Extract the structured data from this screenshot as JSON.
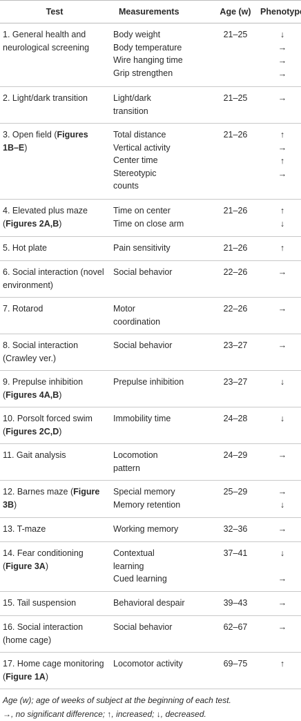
{
  "header": {
    "columns": [
      "Test",
      "Measurements",
      "Age (w)",
      "Phenotype"
    ]
  },
  "table": {
    "rows": [
      {
        "test": [
          {
            "text": "1. General health and neurological screening"
          }
        ],
        "measurements": [
          "Body weight",
          "Body temperature",
          "Wire hanging time",
          "Grip strengthen"
        ],
        "age": "21–25",
        "phenotype": [
          "↓",
          "→",
          "→",
          "→"
        ]
      },
      {
        "test": [
          {
            "text": "2. Light/dark transition"
          }
        ],
        "measurements": [
          [
            "Light/dark",
            "transition"
          ]
        ],
        "age": "21–25",
        "phenotype": [
          "→"
        ]
      },
      {
        "test": [
          {
            "text": "3. Open field ("
          },
          {
            "text": "Figures 1B–E",
            "bold": true
          },
          {
            "text": ")"
          }
        ],
        "measurements": [
          "Total distance",
          "Vertical activity",
          "Center time",
          [
            "Stereotypic",
            "counts"
          ]
        ],
        "age": "21–26",
        "phenotype": [
          "↑",
          "→",
          "↑",
          "→"
        ]
      },
      {
        "test": [
          {
            "text": "4. Elevated plus maze ("
          },
          {
            "text": "Figures 2A,B",
            "bold": true
          },
          {
            "text": ")"
          }
        ],
        "measurements": [
          "Time on center",
          "Time on close arm"
        ],
        "age": "21–26",
        "phenotype": [
          "↑",
          "↓"
        ]
      },
      {
        "test": [
          {
            "text": "5. Hot plate"
          }
        ],
        "measurements": [
          "Pain sensitivity"
        ],
        "age": "21–26",
        "phenotype": [
          "↑"
        ]
      },
      {
        "test": [
          {
            "text": "6. Social interaction (novel environment)"
          }
        ],
        "measurements": [
          "Social behavior"
        ],
        "age": "22–26",
        "phenotype": [
          "→"
        ]
      },
      {
        "test": [
          {
            "text": "7. Rotarod"
          }
        ],
        "measurements": [
          [
            "Motor",
            "coordination"
          ]
        ],
        "age": "22–26",
        "phenotype": [
          "→"
        ]
      },
      {
        "test": [
          {
            "text": "8. Social interaction (Crawley ver.)"
          }
        ],
        "measurements": [
          "Social behavior"
        ],
        "age": "23–27",
        "phenotype": [
          "→"
        ]
      },
      {
        "test": [
          {
            "text": "9. Prepulse inhibition ("
          },
          {
            "text": "Figures 4A,B",
            "bold": true
          },
          {
            "text": ")"
          }
        ],
        "measurements": [
          "Prepulse inhibition"
        ],
        "age": "23–27",
        "phenotype": [
          "↓"
        ]
      },
      {
        "test": [
          {
            "text": "10. Porsolt forced swim ("
          },
          {
            "text": "Figures 2C,D",
            "bold": true
          },
          {
            "text": ")"
          }
        ],
        "measurements": [
          "Immobility time"
        ],
        "age": "24–28",
        "phenotype": [
          "↓"
        ]
      },
      {
        "test": [
          {
            "text": "11. Gait analysis"
          }
        ],
        "measurements": [
          [
            "Locomotion",
            "pattern"
          ]
        ],
        "age": "24–29",
        "phenotype": [
          "→"
        ]
      },
      {
        "test": [
          {
            "text": "12. Barnes maze ("
          },
          {
            "text": "Figure 3B",
            "bold": true
          },
          {
            "text": ")"
          }
        ],
        "measurements": [
          "Special memory",
          "Memory retention"
        ],
        "age": "25–29",
        "phenotype": [
          "→",
          "↓"
        ]
      },
      {
        "test": [
          {
            "text": "13. T-maze"
          }
        ],
        "measurements": [
          "Working memory"
        ],
        "age": "32–36",
        "phenotype": [
          "→"
        ]
      },
      {
        "test": [
          {
            "text": "14. Fear conditioning ("
          },
          {
            "text": "Figure 3A",
            "bold": true
          },
          {
            "text": ")"
          }
        ],
        "measurements": [
          [
            "Contextual",
            "learning"
          ],
          "Cued learning"
        ],
        "age": "37–41",
        "phenotype": [
          "↓",
          "→"
        ]
      },
      {
        "test": [
          {
            "text": "15. Tail suspension"
          }
        ],
        "measurements": [
          "Behavioral despair"
        ],
        "age": "39–43",
        "phenotype": [
          "→"
        ]
      },
      {
        "test": [
          {
            "text": "16. Social interaction (home cage)"
          }
        ],
        "measurements": [
          "Social behavior"
        ],
        "age": "62–67",
        "phenotype": [
          "→"
        ]
      },
      {
        "test": [
          {
            "text": "17. Home cage monitoring ("
          },
          {
            "text": "Figure 1A",
            "bold": true
          },
          {
            "text": ")"
          }
        ],
        "measurements": [
          "Locomotor activity"
        ],
        "age": "69–75",
        "phenotype": [
          "↑"
        ]
      }
    ]
  },
  "notes": [
    "Age (w); age of weeks of subject at the beginning of each test.",
    "→, no significant difference; ↑, increased; ↓, decreased."
  ]
}
